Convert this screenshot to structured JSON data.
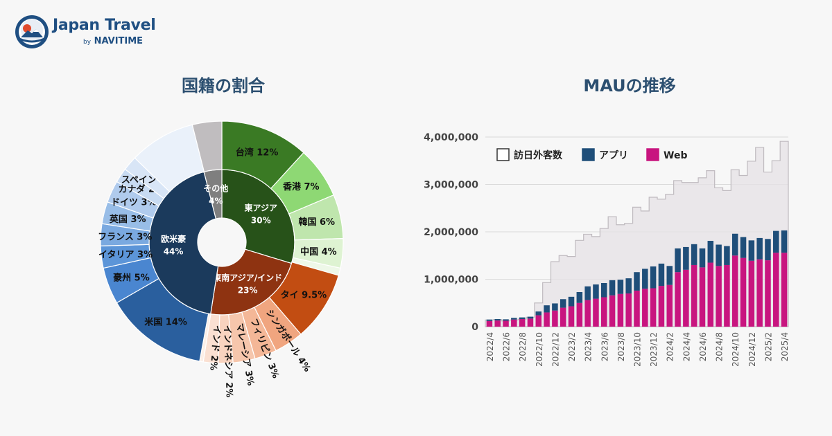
{
  "logo": {
    "title": "Japan Travel",
    "by": "by",
    "brand": "NAVITIME"
  },
  "colors": {
    "accent": "#1f4f82",
    "title": "#2c4f70",
    "background": "#f7f7f7"
  },
  "chart_data": [
    {
      "type": "sunburst",
      "title": "国籍の割合",
      "inner": [
        {
          "label": "東アジア",
          "value": 30,
          "value_label": "30%",
          "color": "#275219"
        },
        {
          "label": "東南アジア/インド",
          "value": 23,
          "value_label": "23%",
          "color": "#8e3311"
        },
        {
          "label": "欧米豪",
          "value": 44,
          "value_label": "44%",
          "color": "#1b3a5c"
        },
        {
          "label": "その他",
          "value": 4,
          "value_label": "4%",
          "color": "#7f7f7f"
        }
      ],
      "outer": [
        {
          "label": "台湾 12%",
          "value": 12,
          "color": "#3a7a24"
        },
        {
          "label": "香港 7%",
          "value": 7,
          "color": "#8ed874"
        },
        {
          "label": "韓国 6%",
          "value": 6,
          "color": "#bfe6ad"
        },
        {
          "label": "中国 4%",
          "value": 4,
          "color": "#def3d2"
        },
        {
          "label": "その他",
          "value": 1,
          "color": "#eef8e8"
        },
        {
          "label": "タイ 9.5%",
          "value": 9.5,
          "color": "#c24d12"
        },
        {
          "label": "シンガポール 4%",
          "value": 4,
          "color": "#f0a57f"
        },
        {
          "label": "フィリピン 3%",
          "value": 3,
          "color": "#f4b797"
        },
        {
          "label": "マレーシア 3%",
          "value": 3,
          "color": "#f6c6ac"
        },
        {
          "label": "インドネシア 2%",
          "value": 2,
          "color": "#f8d3bf"
        },
        {
          "label": "インド 2%",
          "value": 2,
          "color": "#fae0d2"
        },
        {
          "label": "その他",
          "value": 0.5,
          "color": "#fcefe7"
        },
        {
          "label": "米国 14%",
          "value": 14,
          "color": "#2a5f9e"
        },
        {
          "label": "豪州 5%",
          "value": 5,
          "color": "#4a86d0"
        },
        {
          "label": "イタリア 3%",
          "value": 3,
          "color": "#5c95d8"
        },
        {
          "label": "フランス 3%",
          "value": 3,
          "color": "#7aa9e0"
        },
        {
          "label": "英国 3%",
          "value": 3,
          "color": "#98bde7"
        },
        {
          "label": "ドイツ 3%",
          "value": 3,
          "color": "#b0cbed"
        },
        {
          "label": "カナダ 2%",
          "value": 2,
          "color": "#c8dbf2"
        },
        {
          "label": "スペイン 2%",
          "value": 2,
          "color": "#d8e5f6"
        },
        {
          "label": "その他",
          "value": 9,
          "color": "#eaf1fa"
        },
        {
          "label": "その他",
          "value": 4,
          "color": "#c0bdbf"
        }
      ]
    },
    {
      "type": "bar",
      "title": "MAUの推移",
      "legend": [
        "訪日外客数",
        "アプリ",
        "Web"
      ],
      "legend_position": "top-left",
      "series_colors": {
        "visitors": "#e6e2e6",
        "app": "#1f4e79",
        "web": "#c8157f"
      },
      "ylim": [
        0,
        4000000
      ],
      "yticks": [
        "0",
        "1,000,000",
        "2,000,000",
        "3,000,000",
        "4,000,000"
      ],
      "xtick_labels": [
        "2022/4",
        "2022/6",
        "2022/8",
        "2022/10",
        "2022/12",
        "2023/2",
        "2023/4",
        "2023/6",
        "2023/8",
        "2023/10",
        "2023/12",
        "2024/2",
        "2024/4",
        "2024/6",
        "2024/8",
        "2024/10",
        "2024/12",
        "2025/2",
        "2025/4"
      ],
      "categories": [
        "2022/4",
        "2022/5",
        "2022/6",
        "2022/7",
        "2022/8",
        "2022/9",
        "2022/10",
        "2022/11",
        "2022/12",
        "2023/1",
        "2023/2",
        "2023/3",
        "2023/4",
        "2023/5",
        "2023/6",
        "2023/7",
        "2023/8",
        "2023/9",
        "2023/10",
        "2023/11",
        "2023/12",
        "2024/1",
        "2024/2",
        "2024/3",
        "2024/4",
        "2024/5",
        "2024/6",
        "2024/7",
        "2024/8",
        "2024/9",
        "2024/10",
        "2024/11",
        "2024/12",
        "2025/1",
        "2025/2",
        "2025/3",
        "2025/4"
      ],
      "web": [
        120000,
        130000,
        125000,
        150000,
        160000,
        170000,
        240000,
        300000,
        340000,
        400000,
        430000,
        500000,
        560000,
        590000,
        620000,
        660000,
        690000,
        700000,
        760000,
        800000,
        810000,
        860000,
        880000,
        1150000,
        1200000,
        1300000,
        1250000,
        1350000,
        1280000,
        1300000,
        1500000,
        1450000,
        1390000,
        1420000,
        1400000,
        1560000,
        1560000
      ],
      "app": [
        30000,
        30000,
        30000,
        35000,
        35000,
        40000,
        80000,
        150000,
        150000,
        180000,
        200000,
        230000,
        290000,
        300000,
        300000,
        320000,
        300000,
        320000,
        390000,
        420000,
        460000,
        470000,
        400000,
        500000,
        480000,
        440000,
        400000,
        460000,
        450000,
        400000,
        460000,
        440000,
        430000,
        450000,
        450000,
        460000,
        470000
      ],
      "visitors": [
        140000,
        150000,
        120000,
        140000,
        160000,
        200000,
        500000,
        930000,
        1370000,
        1500000,
        1480000,
        1820000,
        1950000,
        1900000,
        2070000,
        2320000,
        2150000,
        2180000,
        2520000,
        2440000,
        2730000,
        2690000,
        2790000,
        3080000,
        3040000,
        3040000,
        3140000,
        3290000,
        2930000,
        2870000,
        3310000,
        3190000,
        3490000,
        3780000,
        3260000,
        3500000,
        3910000
      ]
    }
  ]
}
